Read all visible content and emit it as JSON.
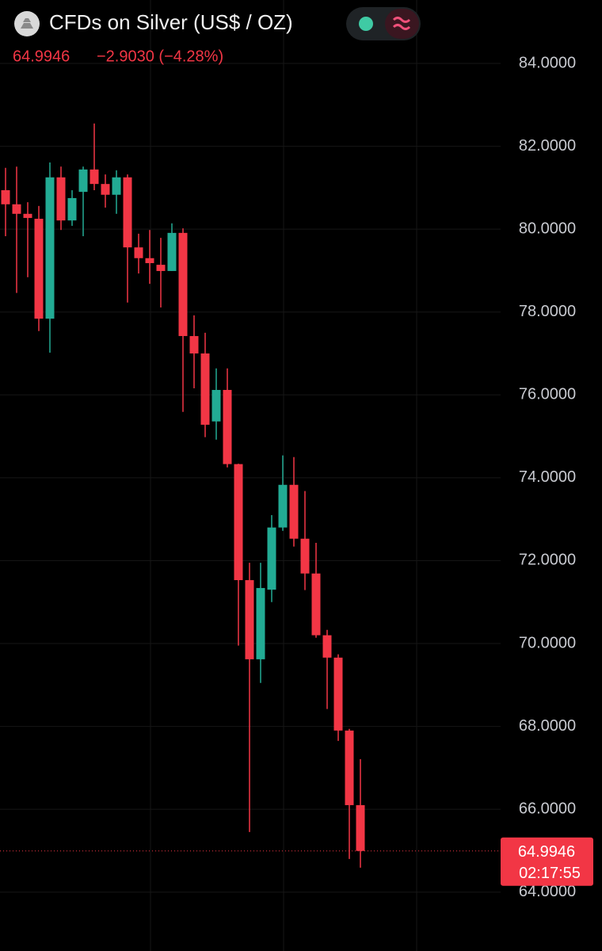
{
  "chart_data": {
    "type": "candlestick",
    "title": "CFDs on Silver (US$ / OZ)",
    "last_price": 64.9946,
    "change": "−2.9030 (−4.28%)",
    "countdown": "02:17:55",
    "up_color": "#22ab94",
    "down_color": "#f23645",
    "grid": true,
    "ylim": [
      62.58,
      85.53
    ],
    "yticks": [
      {
        "value": 84,
        "label": "84.0000"
      },
      {
        "value": 82,
        "label": "82.0000"
      },
      {
        "value": 80,
        "label": "80.0000"
      },
      {
        "value": 78,
        "label": "78.0000"
      },
      {
        "value": 76,
        "label": "76.0000"
      },
      {
        "value": 74,
        "label": "74.0000"
      },
      {
        "value": 72,
        "label": "72.0000"
      },
      {
        "value": 70,
        "label": "70.0000"
      },
      {
        "value": 68,
        "label": "68.0000"
      },
      {
        "value": 66,
        "label": "66.0000"
      },
      {
        "value": 64,
        "label": "64.0000"
      }
    ],
    "open": [
      80.94,
      80.6,
      80.37,
      80.25,
      77.84,
      81.25,
      80.21,
      80.9,
      81.44,
      81.09,
      80.83,
      81.25,
      79.56,
      79.3,
      79.14,
      78.99,
      79.91,
      77.42,
      77.0,
      75.36,
      76.12,
      74.33,
      71.53,
      69.62,
      71.3,
      72.8,
      73.83,
      72.53,
      71.69,
      70.2,
      69.66,
      67.9,
      66.1
    ],
    "high": [
      81.48,
      81.51,
      80.65,
      80.56,
      81.61,
      81.51,
      80.94,
      81.51,
      82.55,
      81.32,
      81.42,
      81.32,
      79.89,
      79.98,
      79.79,
      80.14,
      80.02,
      77.92,
      77.5,
      76.64,
      76.64,
      74.34,
      71.95,
      71.95,
      73.1,
      74.54,
      74.5,
      73.68,
      72.43,
      70.33,
      69.74,
      67.94,
      67.21
    ],
    "low": [
      79.83,
      78.46,
      78.84,
      77.54,
      77.02,
      79.98,
      80.08,
      79.83,
      80.94,
      80.52,
      80.37,
      78.23,
      78.93,
      78.68,
      78.11,
      78.99,
      75.59,
      76.16,
      74.98,
      74.92,
      74.25,
      69.95,
      65.45,
      69.05,
      71.0,
      72.72,
      72.34,
      71.29,
      70.14,
      68.42,
      67.65,
      64.8,
      64.59
    ],
    "close": [
      80.6,
      80.37,
      80.27,
      77.84,
      81.25,
      80.21,
      80.75,
      81.44,
      81.09,
      80.83,
      81.25,
      79.56,
      79.3,
      79.18,
      78.99,
      79.91,
      77.42,
      77.0,
      75.28,
      76.12,
      74.33,
      71.53,
      69.62,
      71.34,
      72.8,
      73.83,
      72.53,
      71.69,
      70.2,
      69.66,
      67.9,
      66.1,
      64.9946
    ]
  }
}
